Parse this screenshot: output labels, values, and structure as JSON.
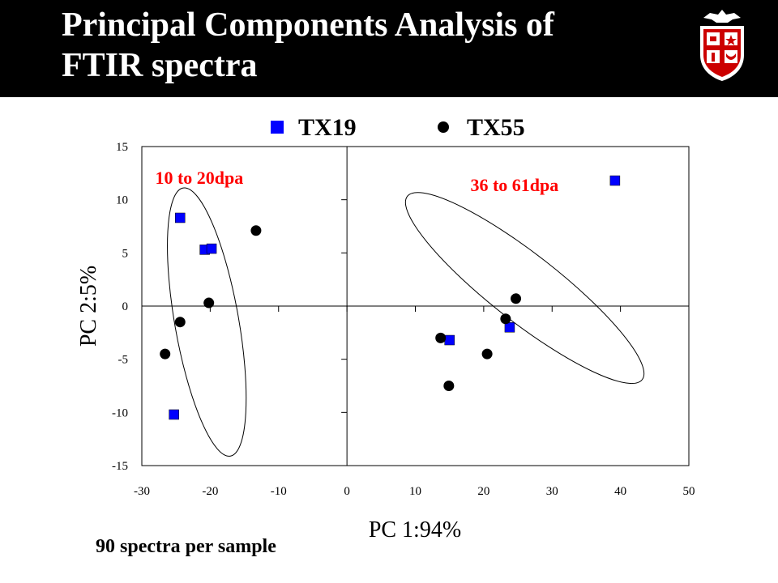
{
  "header": {
    "title": "Principal Components Analysis of\nFTIR spectra"
  },
  "footnote": "90 spectra per sample",
  "chart_data": {
    "type": "scatter",
    "xlabel": "PC 1:94%",
    "ylabel": "PC 2:5%",
    "xlim": [
      -30,
      50
    ],
    "ylim": [
      -15,
      15
    ],
    "xticks": [
      -30,
      -20,
      -10,
      0,
      10,
      20,
      30,
      40,
      50
    ],
    "yticks": [
      -15,
      -10,
      -5,
      0,
      5,
      10,
      15
    ],
    "grid": false,
    "legend_position": "top",
    "series": [
      {
        "name": "TX19",
        "marker": "square",
        "color": "#0000FF",
        "points": [
          [
            -24.4,
            8.3
          ],
          [
            -20.8,
            5.3
          ],
          [
            -19.8,
            5.4
          ],
          [
            -25.3,
            -10.2
          ],
          [
            15.0,
            -3.2
          ],
          [
            23.8,
            -2.0
          ],
          [
            39.2,
            11.8
          ]
        ]
      },
      {
        "name": "TX55",
        "marker": "circle",
        "color": "#000000",
        "points": [
          [
            -13.3,
            7.1
          ],
          [
            -20.2,
            0.3
          ],
          [
            -24.4,
            -1.5
          ],
          [
            -26.6,
            -4.5
          ],
          [
            13.7,
            -3.0
          ],
          [
            14.9,
            -7.5
          ],
          [
            20.5,
            -4.5
          ],
          [
            23.2,
            -1.2
          ],
          [
            24.7,
            0.7
          ]
        ]
      }
    ],
    "annotations": [
      {
        "text": "10 to 20dpa",
        "color": "#FF0000",
        "x": -21.6,
        "y": 11.5
      },
      {
        "text": "36 to 61dpa",
        "color": "#FF0000",
        "x": 24.5,
        "y": 10.8
      }
    ],
    "cluster_ellipses": [
      {
        "cx": -20.5,
        "cy": -1.5,
        "rx": 8.5,
        "ry": 12.8,
        "angle": 80
      },
      {
        "cx": 26.0,
        "cy": 1.7,
        "rx": 9.0,
        "ry": 14.0,
        "angle": 38
      }
    ]
  },
  "logo": {
    "name": "university-shield-logo",
    "colors": [
      "#CC0000",
      "#FFFFFF",
      "#000000"
    ]
  }
}
